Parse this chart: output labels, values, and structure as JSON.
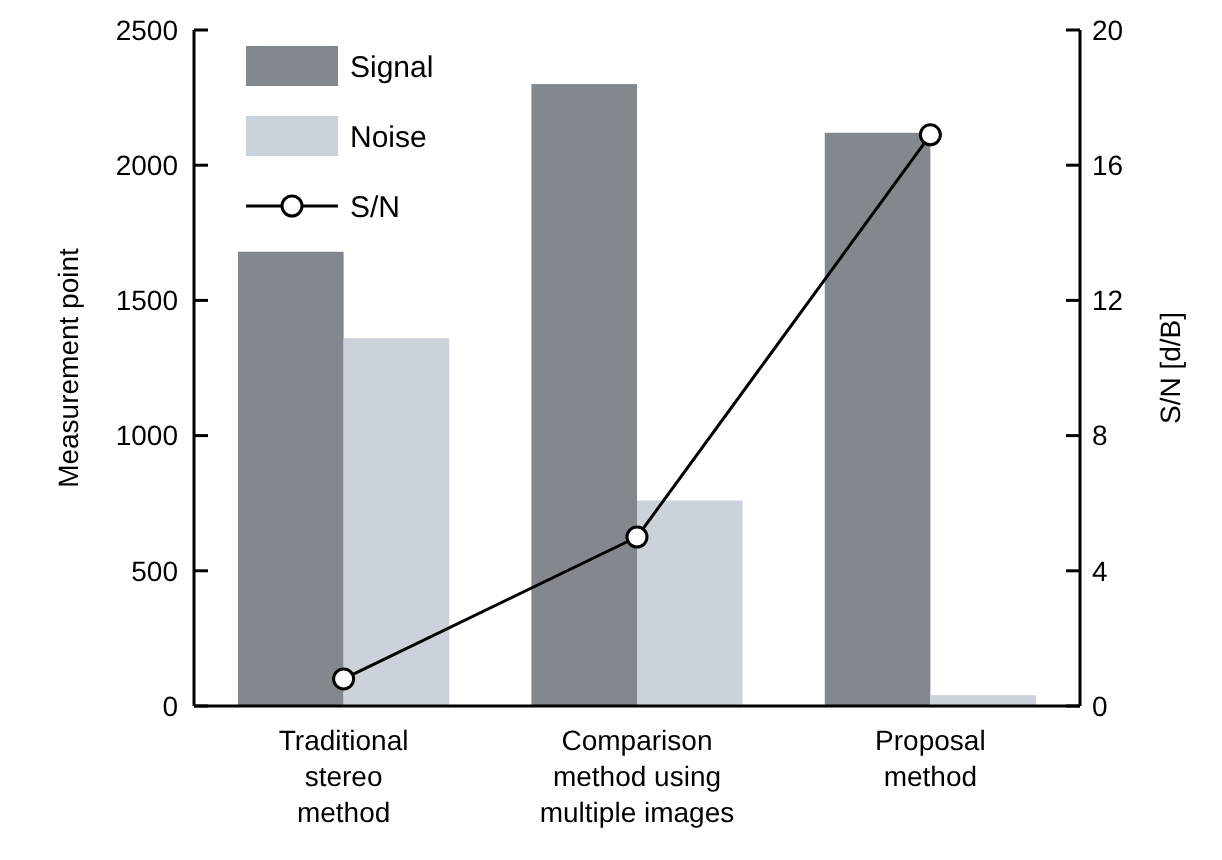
{
  "chart_data": {
    "type": "bar",
    "categories": [
      "Traditional\nstereo\nmethod",
      "Comparison\nmethod using\nmultiple images",
      "Proposal\nmethod"
    ],
    "ylabel": "Measurement point",
    "y2label": "S/N [d/B]",
    "ylim": [
      0,
      2500
    ],
    "yticks": [
      0,
      500,
      1000,
      1500,
      2000,
      2500
    ],
    "y2lim": [
      0,
      20
    ],
    "y2ticks": [
      0,
      4,
      8,
      12,
      16,
      20
    ],
    "series": [
      {
        "name": "Signal",
        "color": "#82888e",
        "values": [
          1680,
          2300,
          2120
        ]
      },
      {
        "name": "Noise",
        "color": "#ccd2da",
        "values": [
          1360,
          760,
          40
        ]
      },
      {
        "name": "S/N",
        "type": "line",
        "axis": "y2",
        "color": "#000000",
        "marker": "circle",
        "values": [
          0.8,
          5,
          16.9
        ]
      }
    ],
    "legend": "top left",
    "grid": false
  }
}
